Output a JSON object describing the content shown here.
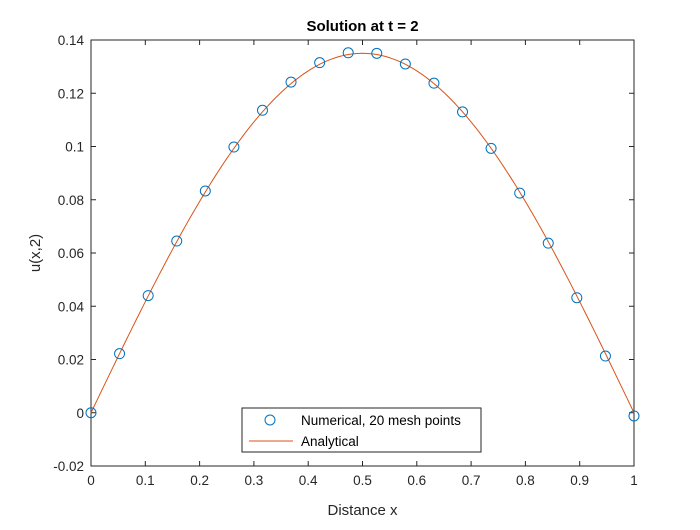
{
  "chart_data": {
    "type": "line",
    "title": "Solution at t = 2",
    "xlabel": "Distance x",
    "ylabel": "u(x,2)",
    "xlim": [
      0,
      1
    ],
    "ylim": [
      -0.02,
      0.14
    ],
    "xticks": [
      0,
      0.1,
      0.2,
      0.3,
      0.4,
      0.5,
      0.6,
      0.7,
      0.8,
      0.9,
      1
    ],
    "xtick_labels": [
      "0",
      "0.1",
      "0.2",
      "0.3",
      "0.4",
      "0.5",
      "0.6",
      "0.7",
      "0.8",
      "0.9",
      "1"
    ],
    "yticks": [
      -0.02,
      0,
      0.02,
      0.04,
      0.06,
      0.08,
      0.1,
      0.12,
      0.14
    ],
    "ytick_labels": [
      "-0.02",
      "0",
      "0.02",
      "0.04",
      "0.06",
      "0.08",
      "0.1",
      "0.12",
      "0.14"
    ],
    "grid": false,
    "legend_position": "bottom-center",
    "series": [
      {
        "name": "Numerical, 20 mesh points",
        "style": "markers",
        "marker": "circle",
        "color": "#0072BD",
        "x": [
          0,
          0.0526,
          0.1053,
          0.1579,
          0.2105,
          0.2632,
          0.3158,
          0.3684,
          0.4211,
          0.4737,
          0.5263,
          0.5789,
          0.6316,
          0.6842,
          0.7368,
          0.7895,
          0.8421,
          0.8947,
          0.9474,
          1
        ],
        "y": [
          0,
          0.0222,
          0.044,
          0.0645,
          0.0833,
          0.0998,
          0.1136,
          0.1242,
          0.1315,
          0.1352,
          0.135,
          0.131,
          0.1238,
          0.113,
          0.0993,
          0.0825,
          0.0637,
          0.0432,
          0.0213,
          -0.0012
        ]
      },
      {
        "name": "Analytical",
        "style": "line",
        "color": "#D95319",
        "function": "0.135*sin(pi*x)"
      }
    ]
  }
}
